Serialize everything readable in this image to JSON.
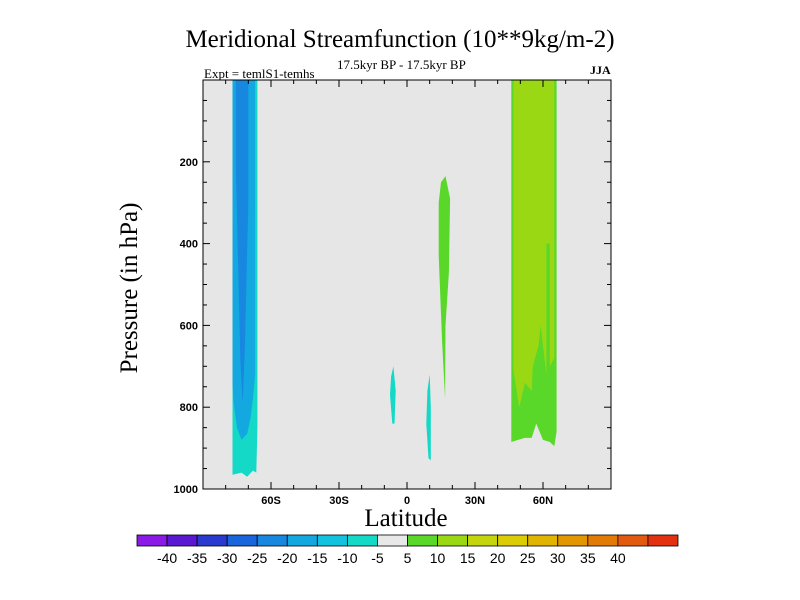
{
  "chart_data": {
    "type": "contour",
    "title": "Meridional Streamfunction (10**9kg/m-2)",
    "subtitle": "17.5kyr BP - 17.5kyr BP",
    "experiment": "Expt = temlS1-temhs",
    "season": "JJA",
    "xlabel": "Latitude",
    "ylabel": "Pressure (in hPa)",
    "xlim": [
      -90,
      90
    ],
    "ylim": [
      1000,
      0
    ],
    "x_ticks": [
      {
        "value": -60,
        "label": "60S"
      },
      {
        "value": -30,
        "label": "30S"
      },
      {
        "value": 0,
        "label": "0"
      },
      {
        "value": 30,
        "label": "30N"
      },
      {
        "value": 60,
        "label": "60N"
      }
    ],
    "y_ticks": [
      {
        "value": 200,
        "label": "200"
      },
      {
        "value": 400,
        "label": "400"
      },
      {
        "value": 600,
        "label": "600"
      },
      {
        "value": 800,
        "label": "800"
      },
      {
        "value": 1000,
        "label": "1000"
      }
    ],
    "background_color": "#e6e6e6",
    "colorbar": {
      "colors": [
        "#8b1ae6",
        "#5a18d2",
        "#2a3acf",
        "#1a64dc",
        "#1787df",
        "#13a8e0",
        "#12c2de",
        "#13d9c6",
        "#e8e8e8",
        "#5ad82a",
        "#9ad814",
        "#c4d50e",
        "#dccc06",
        "#e0b400",
        "#e29600",
        "#e27a06",
        "#e25a10",
        "#e23010"
      ],
      "levels": [
        "-40",
        "-35",
        "-30",
        "-25",
        "-20",
        "-15",
        "-10",
        "-5",
        "5",
        "10",
        "15",
        "20",
        "25",
        "30",
        "35",
        "40"
      ]
    },
    "regions": [
      {
        "name": "sh-tongue-outer",
        "level": -10,
        "color": "#13d9c6",
        "points": [
          [
            -77,
            0
          ],
          [
            -66,
            0
          ],
          [
            -66,
            850
          ],
          [
            -66.5,
            960
          ],
          [
            -68,
            955
          ],
          [
            -70.5,
            970
          ],
          [
            -73,
            960
          ],
          [
            -77,
            965
          ],
          [
            -77,
            850
          ]
        ]
      },
      {
        "name": "sh-band-main",
        "level": -15,
        "color": "#13a8e0",
        "points": [
          [
            -77,
            0
          ],
          [
            -67,
            0
          ],
          [
            -67,
            720
          ],
          [
            -68,
            780
          ],
          [
            -69,
            825
          ],
          [
            -70.5,
            865
          ],
          [
            -73,
            880
          ],
          [
            -75,
            850
          ],
          [
            -76.5,
            790
          ],
          [
            -77,
            740
          ]
        ]
      },
      {
        "name": "sh-core",
        "level": -20,
        "color": "#1787df",
        "points": [
          [
            -75.5,
            0
          ],
          [
            -70,
            0
          ],
          [
            -70,
            300
          ],
          [
            -71.5,
            650
          ],
          [
            -72.5,
            790
          ],
          [
            -73.5,
            690
          ],
          [
            -74.5,
            450
          ],
          [
            -75.5,
            220
          ]
        ]
      },
      {
        "name": "eq-blob-a",
        "level": -5,
        "color": "#13d9c6",
        "points": [
          [
            -6,
            700
          ],
          [
            -5,
            760
          ],
          [
            -5.5,
            840
          ],
          [
            -6.5,
            840
          ],
          [
            -7.5,
            770
          ],
          [
            -7,
            725
          ]
        ]
      },
      {
        "name": "eq-blob-b",
        "level": -5,
        "color": "#13d9c6",
        "points": [
          [
            10,
            720
          ],
          [
            10.5,
            800
          ],
          [
            10.5,
            930
          ],
          [
            9.5,
            925
          ],
          [
            8.5,
            840
          ],
          [
            9,
            760
          ]
        ]
      },
      {
        "name": "eq-blob-c",
        "level": 5,
        "color": "#5ad82a",
        "points": [
          [
            17,
            235
          ],
          [
            19,
            290
          ],
          [
            18.5,
            470
          ],
          [
            17,
            600
          ],
          [
            16.8,
            780
          ],
          [
            15.5,
            640
          ],
          [
            14,
            430
          ],
          [
            14,
            300
          ],
          [
            15,
            250
          ]
        ]
      },
      {
        "name": "nh-band-outer",
        "level": 5,
        "color": "#5ad82a",
        "points": [
          [
            46,
            0
          ],
          [
            66,
            0
          ],
          [
            66,
            860
          ],
          [
            65,
            895
          ],
          [
            63,
            885
          ],
          [
            60,
            880
          ],
          [
            57,
            840
          ],
          [
            55,
            875
          ],
          [
            52,
            875
          ],
          [
            49,
            880
          ],
          [
            46,
            885
          ]
        ]
      },
      {
        "name": "nh-band-inner",
        "level": 10,
        "color": "#9ad814",
        "points": [
          [
            47,
            0
          ],
          [
            65,
            0
          ],
          [
            65,
            680
          ],
          [
            63,
            700
          ],
          [
            63,
            400
          ],
          [
            61.5,
            400
          ],
          [
            61.5,
            720
          ],
          [
            59,
            600
          ],
          [
            58,
            650
          ],
          [
            55.5,
            700
          ],
          [
            55,
            760
          ],
          [
            52,
            740
          ],
          [
            49.5,
            800
          ],
          [
            47,
            710
          ]
        ]
      }
    ]
  }
}
